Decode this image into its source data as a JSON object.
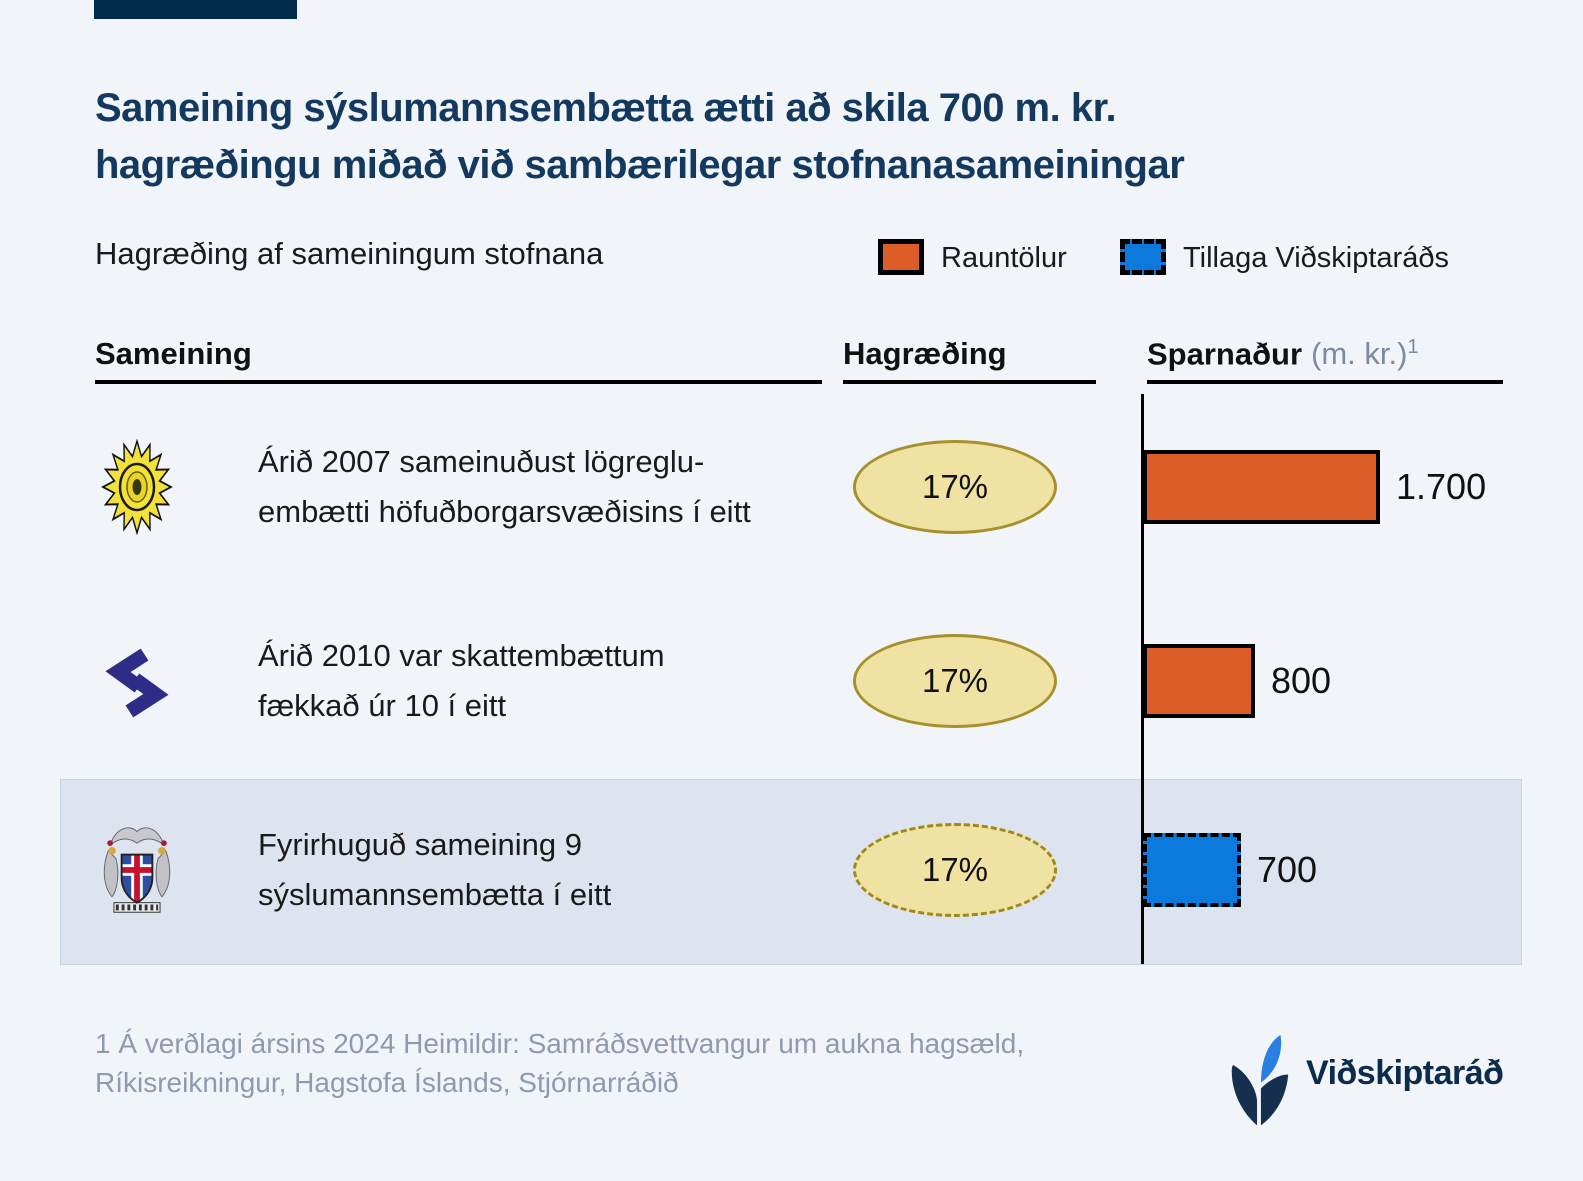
{
  "colors": {
    "background": "#f1f4f9",
    "accent_bar": "#002b49",
    "title_navy": "#14395e",
    "orange": "#dd5d28",
    "blue": "#0c79dd",
    "ellipse_fill": "#efe2a3",
    "ellipse_border": "#a6912c",
    "highlight_band": "#dee4ef",
    "footnote_gray": "#8f9aae"
  },
  "header": {
    "title_line1": "Sameining sýslumannsembætta ætti að skila 700 m. kr.",
    "title_line2": "hagræðingu miðað við sambærilegar stofnanasameiningar",
    "subtitle": "Hagræðing af sameiningum stofnana"
  },
  "legend": {
    "items": [
      {
        "label": "Rauntölur",
        "color": "#dd5d28",
        "style": "solid"
      },
      {
        "label": "Tillaga Viðskiptaráðs",
        "color": "#0c79dd",
        "style": "dashed"
      }
    ]
  },
  "table": {
    "col_sameining": "Sameining",
    "col_hagraeding": "Hagræðing",
    "col_sparnadur": "Sparnaður",
    "col_sparnadur_unit": "(m. kr.)",
    "col_sparnadur_marker": "1"
  },
  "rows": [
    {
      "icon": "police-badge-icon",
      "line1": "Árið 2007 sameinuðust lögreglu-",
      "line2": "embætti höfuðborgarsvæðisins í eitt",
      "hagraeding": "17%",
      "value": 1700,
      "value_label": "1.700",
      "bar_color": "#dd5d28",
      "style": "solid",
      "highlighted": false
    },
    {
      "icon": "tax-authority-icon",
      "line1": "Árið 2010 var skattembættum",
      "line2": "fækkað úr 10 í eitt",
      "hagraeding": "17%",
      "value": 800,
      "value_label": "800",
      "bar_color": "#dd5d28",
      "style": "solid",
      "highlighted": false
    },
    {
      "icon": "iceland-coat-of-arms-icon",
      "line1": "Fyrirhuguð sameining 9",
      "line2": "sýslumannsembætta í eitt",
      "hagraeding": "17%",
      "value": 700,
      "value_label": "700",
      "bar_color": "#0c79dd",
      "style": "dashed",
      "highlighted": true
    }
  ],
  "footnote": {
    "line1": "1 Á verðlagi ársins 2024 Heimildir: Samráðsvettvangur um aukna hagsæld,",
    "line2": "Ríkisreikningur, Hagstofa Íslands, Stjórnarráðið"
  },
  "brand": {
    "name": "Viðskiptaráð"
  },
  "chart_data": {
    "type": "bar",
    "orientation": "horizontal",
    "title": "Hagræðing af sameiningum stofnana",
    "categories": [
      "Árið 2007 sameinuðust lögregluembætti höfuðborgarsvæðisins í eitt",
      "Árið 2010 var skattembættum fækkað úr 10 í eitt",
      "Fyrirhuguð sameining 9 sýslumannsembætta í eitt"
    ],
    "series": [
      {
        "name": "Sparnaður (m. kr.)",
        "values": [
          1700,
          800,
          700
        ]
      }
    ],
    "value_labels": [
      "1.700",
      "800",
      "700"
    ],
    "hagraeding_percent": [
      "17%",
      "17%",
      "17%"
    ],
    "legend": [
      "Rauntölur",
      "Tillaga Viðskiptaráðs"
    ],
    "legend_position": "top-right",
    "xlim": [
      0,
      1700
    ],
    "grid": false,
    "bar_styles": [
      "solid-orange",
      "solid-orange",
      "dashed-blue"
    ],
    "footnote_marker": "1"
  }
}
